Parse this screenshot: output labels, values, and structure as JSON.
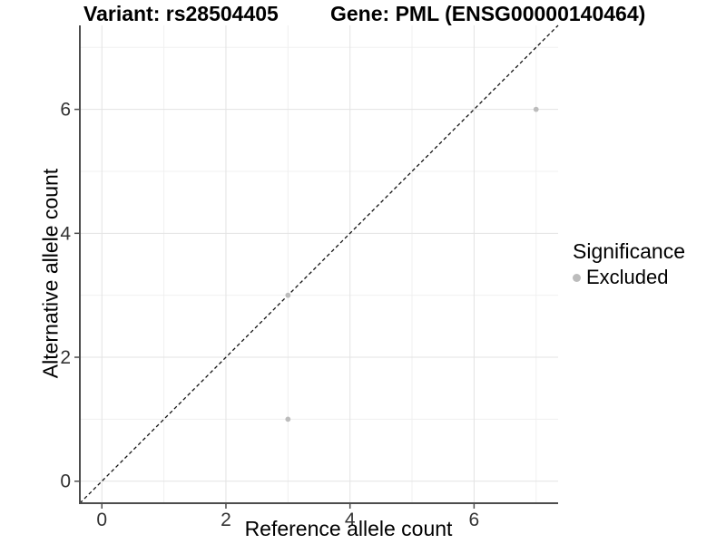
{
  "titles": {
    "variant": "Variant: rs28504405",
    "gene": "Gene: PML (ENSG00000140464)"
  },
  "legend": {
    "title": "Significance",
    "items": [
      {
        "label": "Excluded",
        "color": "#bcbcbc"
      }
    ]
  },
  "chart_data": {
    "type": "scatter",
    "title": "Variant: rs28504405    Gene: PML (ENSG00000140464)",
    "xlabel": "Reference allele count",
    "ylabel": "Alternative allele count",
    "xlim": [
      -0.355,
      7.355
    ],
    "ylim": [
      -0.355,
      7.355
    ],
    "xticks": [
      0,
      2,
      4,
      6
    ],
    "yticks": [
      0,
      2,
      4,
      6
    ],
    "xticks_minor": [
      1,
      3,
      5,
      7
    ],
    "yticks_minor": [
      1,
      3,
      5,
      7
    ],
    "grid": true,
    "legend_position": "right",
    "series": [
      {
        "name": "Excluded",
        "color": "#bcbcbc",
        "points": [
          [
            3,
            1
          ],
          [
            3,
            3
          ],
          [
            7,
            6
          ]
        ]
      }
    ],
    "identity_line": {
      "slope": 1,
      "intercept": 0,
      "style": "dashed",
      "color": "#111111"
    },
    "colors": {
      "grid_major": "#e3e3e3",
      "grid_minor": "#f0f0f0",
      "axis_line": "#4d4d4d",
      "tick_text": "#333333",
      "point": "#bcbcbc",
      "background": "#ffffff"
    }
  }
}
